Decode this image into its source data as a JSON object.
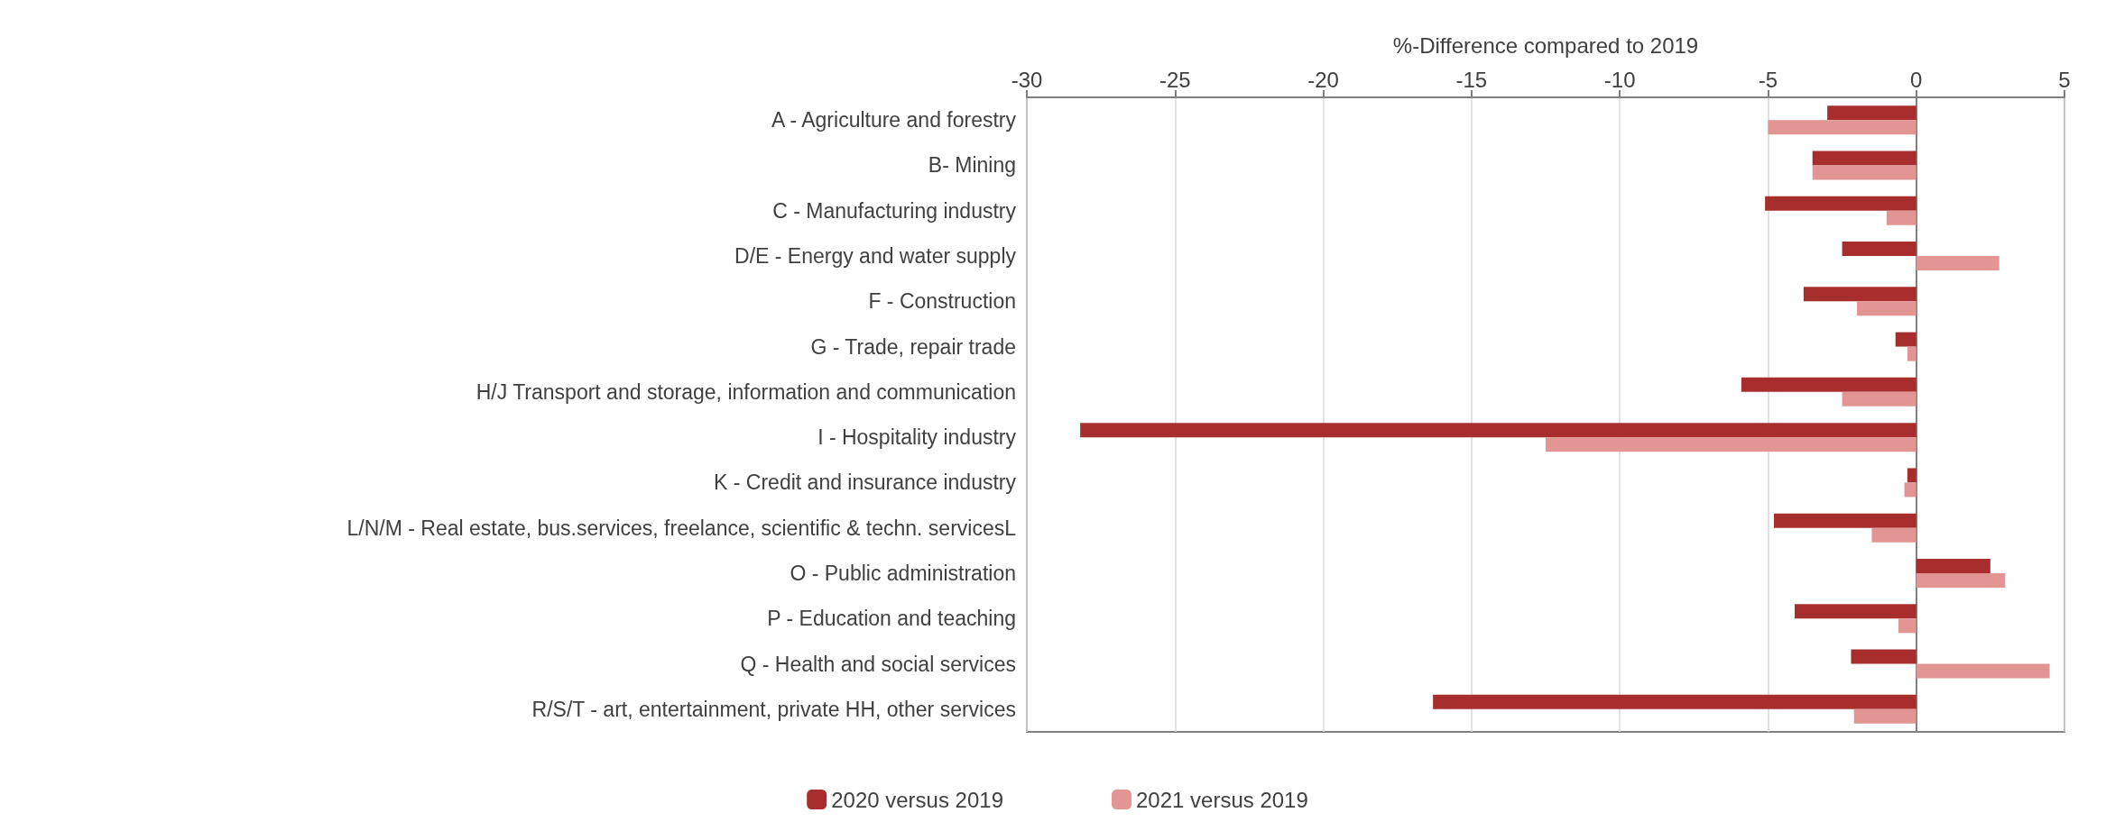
{
  "chart_data": {
    "type": "bar",
    "orientation": "horizontal",
    "xlabel": "%-Difference compared to 2019",
    "categories": [
      "A - Agriculture and forestry",
      "B- Mining",
      "C - Manufacturing industry",
      "D/E - Energy and water supply",
      "F - Construction",
      "G - Trade, repair trade",
      "H/J Transport and storage, information and communication",
      "I - Hospitality industry",
      "K - Credit and insurance industry",
      "L/N/M - Real estate, bus.services, freelance, scientific & techn. servicesL",
      "O - Public administration",
      "P - Education and teaching",
      "Q - Health and social services",
      "R/S/T - art, entertainment, private HH, other services"
    ],
    "series": [
      {
        "name": "2020 versus 2019",
        "color": "#a82e2e",
        "values": [
          -3.0,
          -3.5,
          -5.1,
          -2.5,
          -3.8,
          -0.7,
          -5.9,
          -28.2,
          -0.3,
          -4.8,
          2.5,
          -4.1,
          -2.2,
          -16.3
        ]
      },
      {
        "name": "2021 versus 2019",
        "color": "#e29593",
        "values": [
          -5.0,
          -3.5,
          -1.0,
          2.8,
          -2.0,
          -0.3,
          -2.5,
          -12.5,
          -0.4,
          -1.5,
          3.0,
          -0.6,
          4.5,
          -2.1
        ]
      }
    ],
    "xlim": [
      -30,
      5
    ],
    "xticks": [
      -30,
      -25,
      -20,
      -15,
      -10,
      -5,
      0,
      5
    ],
    "grid": "x",
    "legend": "bottom"
  }
}
